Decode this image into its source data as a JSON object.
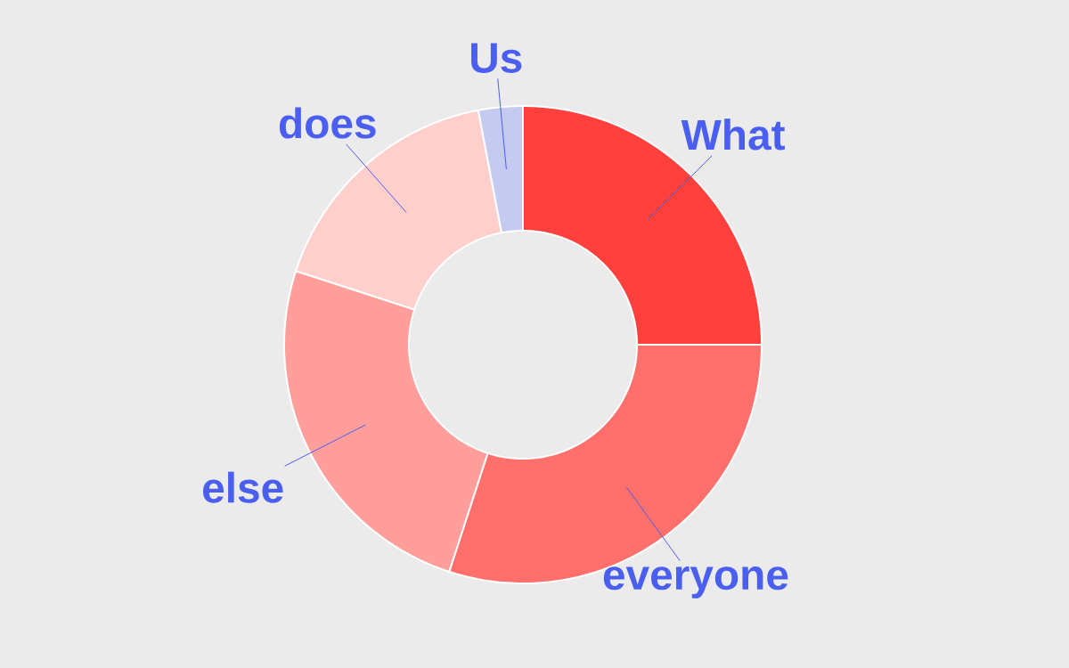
{
  "chart_data": {
    "type": "donut",
    "categories": [
      "What",
      "everyone",
      "else",
      "does",
      "Us"
    ],
    "values": [
      25,
      30,
      25,
      17,
      3
    ],
    "colors": [
      "#ff403d",
      "#ff6f6b",
      "#ff9e9a",
      "#ffcfcc",
      "#c5cbf0"
    ],
    "legend": false
  }
}
